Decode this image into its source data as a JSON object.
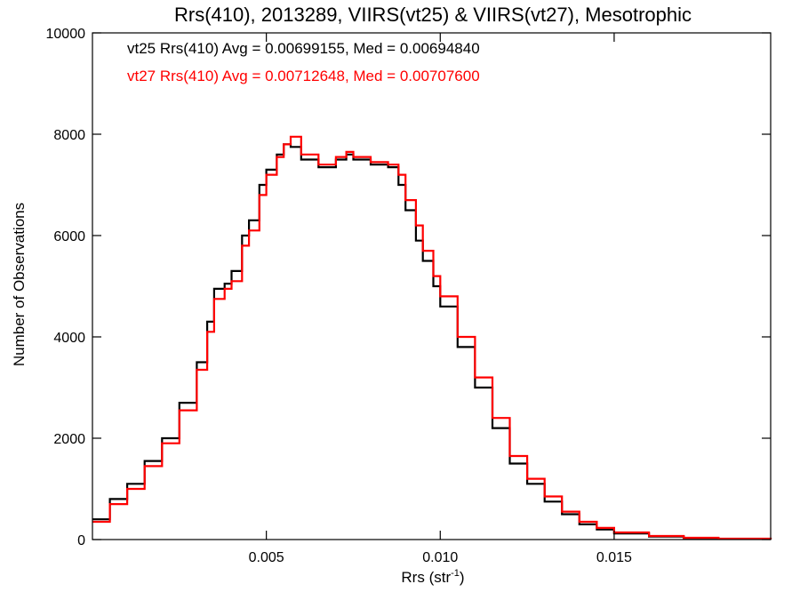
{
  "chart_data": {
    "type": "line",
    "title": "Rrs(410), 2013289, VIIRS(vt25) & VIIRS(vt27), Mesotrophic",
    "xlabel_main": "Rrs (str",
    "xlabel_sup": "-1",
    "xlabel_close": ")",
    "ylabel": "Number of Observations",
    "xlim": [
      0.0,
      0.0195
    ],
    "ylim": [
      0,
      10000
    ],
    "x_ticks": [
      {
        "value": 0.005,
        "label": "0.005"
      },
      {
        "value": 0.01,
        "label": "0.010"
      },
      {
        "value": 0.015,
        "label": "0.015"
      }
    ],
    "y_ticks": [
      {
        "value": 0,
        "label": "0"
      },
      {
        "value": 2000,
        "label": "2000"
      },
      {
        "value": 4000,
        "label": "4000"
      },
      {
        "value": 6000,
        "label": "6000"
      },
      {
        "value": 8000,
        "label": "8000"
      },
      {
        "value": 10000,
        "label": "10000"
      }
    ],
    "annotations": [
      {
        "text": "vt25 Rrs(410) Avg = 0.00699155, Med = 0.00694840",
        "color": "#000000"
      },
      {
        "text": "vt27 Rrs(410) Avg = 0.00712648, Med = 0.00707600",
        "color": "#ff0000"
      }
    ],
    "series": [
      {
        "color": "#000000",
        "points": [
          [
            0.0,
            400
          ],
          [
            0.0005,
            800
          ],
          [
            0.001,
            1100
          ],
          [
            0.0015,
            1550
          ],
          [
            0.002,
            2000
          ],
          [
            0.0025,
            2700
          ],
          [
            0.003,
            3500
          ],
          [
            0.0033,
            4300
          ],
          [
            0.0035,
            4950
          ],
          [
            0.0038,
            5050
          ],
          [
            0.004,
            5300
          ],
          [
            0.0043,
            6000
          ],
          [
            0.0045,
            6300
          ],
          [
            0.0048,
            7000
          ],
          [
            0.005,
            7300
          ],
          [
            0.0053,
            7600
          ],
          [
            0.0055,
            7800
          ],
          [
            0.0057,
            7750
          ],
          [
            0.006,
            7500
          ],
          [
            0.0065,
            7350
          ],
          [
            0.007,
            7500
          ],
          [
            0.0073,
            7600
          ],
          [
            0.0075,
            7500
          ],
          [
            0.008,
            7400
          ],
          [
            0.0085,
            7350
          ],
          [
            0.0088,
            7000
          ],
          [
            0.009,
            6500
          ],
          [
            0.0093,
            5900
          ],
          [
            0.0095,
            5500
          ],
          [
            0.0098,
            5000
          ],
          [
            0.01,
            4600
          ],
          [
            0.0105,
            3800
          ],
          [
            0.011,
            3000
          ],
          [
            0.0115,
            2200
          ],
          [
            0.012,
            1500
          ],
          [
            0.0125,
            1100
          ],
          [
            0.013,
            750
          ],
          [
            0.0135,
            500
          ],
          [
            0.014,
            300
          ],
          [
            0.0145,
            200
          ],
          [
            0.015,
            120
          ],
          [
            0.016,
            60
          ],
          [
            0.017,
            30
          ],
          [
            0.018,
            15
          ],
          [
            0.0195,
            5
          ]
        ]
      },
      {
        "color": "#ff0000",
        "points": [
          [
            0.0,
            350
          ],
          [
            0.0005,
            700
          ],
          [
            0.001,
            1000
          ],
          [
            0.0015,
            1450
          ],
          [
            0.002,
            1900
          ],
          [
            0.0025,
            2550
          ],
          [
            0.003,
            3350
          ],
          [
            0.0033,
            4100
          ],
          [
            0.0035,
            4750
          ],
          [
            0.0038,
            4950
          ],
          [
            0.004,
            5100
          ],
          [
            0.0043,
            5800
          ],
          [
            0.0045,
            6100
          ],
          [
            0.0048,
            6800
          ],
          [
            0.005,
            7200
          ],
          [
            0.0053,
            7550
          ],
          [
            0.0055,
            7800
          ],
          [
            0.0057,
            7950
          ],
          [
            0.006,
            7600
          ],
          [
            0.0065,
            7400
          ],
          [
            0.007,
            7550
          ],
          [
            0.0073,
            7650
          ],
          [
            0.0075,
            7550
          ],
          [
            0.008,
            7450
          ],
          [
            0.0085,
            7400
          ],
          [
            0.0088,
            7200
          ],
          [
            0.009,
            6700
          ],
          [
            0.0093,
            6200
          ],
          [
            0.0095,
            5700
          ],
          [
            0.0098,
            5200
          ],
          [
            0.01,
            4800
          ],
          [
            0.0105,
            4000
          ],
          [
            0.011,
            3200
          ],
          [
            0.0115,
            2400
          ],
          [
            0.012,
            1650
          ],
          [
            0.0125,
            1200
          ],
          [
            0.013,
            850
          ],
          [
            0.0135,
            550
          ],
          [
            0.014,
            350
          ],
          [
            0.0145,
            230
          ],
          [
            0.015,
            140
          ],
          [
            0.016,
            70
          ],
          [
            0.017,
            35
          ],
          [
            0.018,
            18
          ],
          [
            0.0195,
            5
          ]
        ]
      }
    ]
  }
}
